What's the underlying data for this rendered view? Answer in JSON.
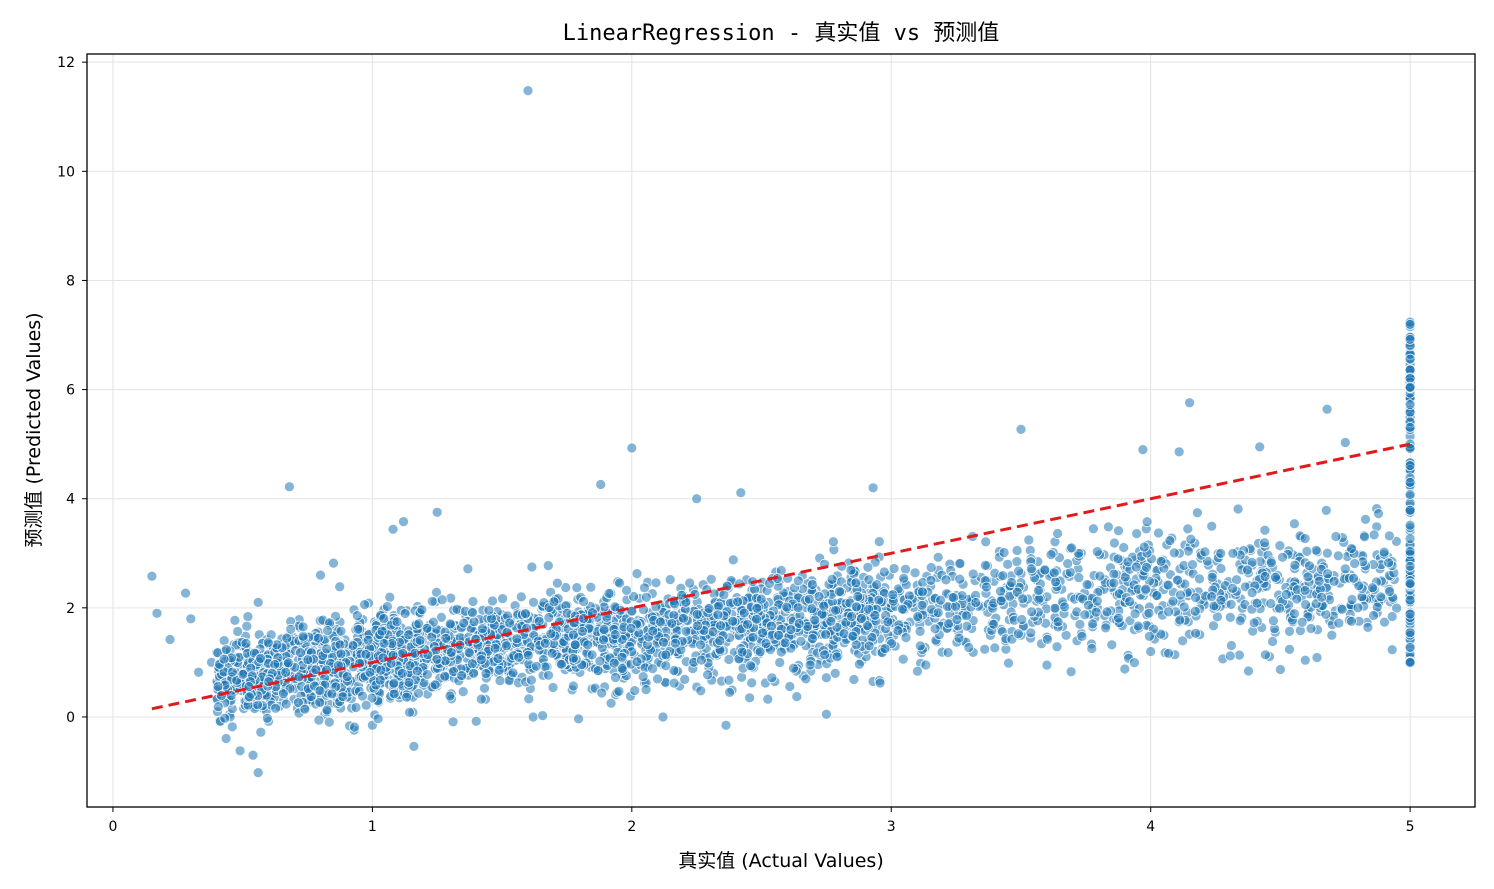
{
  "chart_data": {
    "type": "scatter",
    "title": "LinearRegression - 真实值 vs 预测值",
    "xlabel": "真实值 (Actual Values)",
    "ylabel": "预测值 (Predicted Values)",
    "xlim": [
      -0.1,
      5.25
    ],
    "ylim": [
      -1.65,
      12.15
    ],
    "xticks": [
      0,
      1,
      2,
      3,
      4,
      5
    ],
    "yticks": [
      0,
      2,
      4,
      6,
      8,
      10,
      12
    ],
    "grid": true,
    "colors": {
      "points": "#1f77b4",
      "reference": "#e31a1c",
      "point_edge": "#ffffff"
    },
    "reference_line": {
      "style": "dashed",
      "x": [
        0.15,
        5.0
      ],
      "y": [
        0.15,
        5.0
      ]
    },
    "series": [
      {
        "points": [
          [
            0.15,
            2.58
          ],
          [
            0.17,
            1.9
          ],
          [
            0.22,
            1.42
          ],
          [
            0.28,
            2.27
          ],
          [
            0.3,
            1.8
          ],
          [
            0.33,
            0.82
          ],
          [
            0.38,
            1.0
          ],
          [
            0.4,
            1.18
          ],
          [
            0.44,
            0.68
          ],
          [
            0.45,
            0.05
          ],
          [
            0.46,
            -0.18
          ],
          [
            0.47,
            1.77
          ],
          [
            0.49,
            -0.62
          ],
          [
            0.52,
            1.84
          ],
          [
            0.54,
            -0.7
          ],
          [
            0.56,
            2.1
          ],
          [
            0.56,
            -1.02
          ],
          [
            0.57,
            -0.28
          ],
          [
            0.6,
            -0.08
          ],
          [
            0.68,
            4.22
          ],
          [
            0.72,
            1.64
          ],
          [
            0.8,
            2.6
          ],
          [
            0.85,
            2.82
          ],
          [
            0.93,
            -0.24
          ],
          [
            1.0,
            -0.15
          ],
          [
            1.08,
            3.44
          ],
          [
            1.12,
            3.58
          ],
          [
            1.16,
            -0.54
          ],
          [
            1.25,
            3.75
          ],
          [
            1.4,
            -0.08
          ],
          [
            1.6,
            11.48
          ],
          [
            1.62,
            0.0
          ],
          [
            1.88,
            4.26
          ],
          [
            2.0,
            4.93
          ],
          [
            2.12,
            0.0
          ],
          [
            2.13,
            0.62
          ],
          [
            2.25,
            0.55
          ],
          [
            2.25,
            4.0
          ],
          [
            2.42,
            4.11
          ],
          [
            2.75,
            0.05
          ],
          [
            2.75,
            0.72
          ],
          [
            2.93,
            0.65
          ],
          [
            2.93,
            4.2
          ],
          [
            3.2,
            1.72
          ],
          [
            3.36,
            1.24
          ],
          [
            3.5,
            5.27
          ],
          [
            3.5,
            1.5
          ],
          [
            3.6,
            0.95
          ],
          [
            3.9,
            0.88
          ],
          [
            3.97,
            4.9
          ],
          [
            4.0,
            1.2
          ],
          [
            4.11,
            4.86
          ],
          [
            4.15,
            5.76
          ],
          [
            4.42,
            4.95
          ],
          [
            4.48,
            1.55
          ],
          [
            4.5,
            0.87
          ],
          [
            4.68,
            5.64
          ],
          [
            4.75,
            5.03
          ]
        ]
      }
    ]
  }
}
